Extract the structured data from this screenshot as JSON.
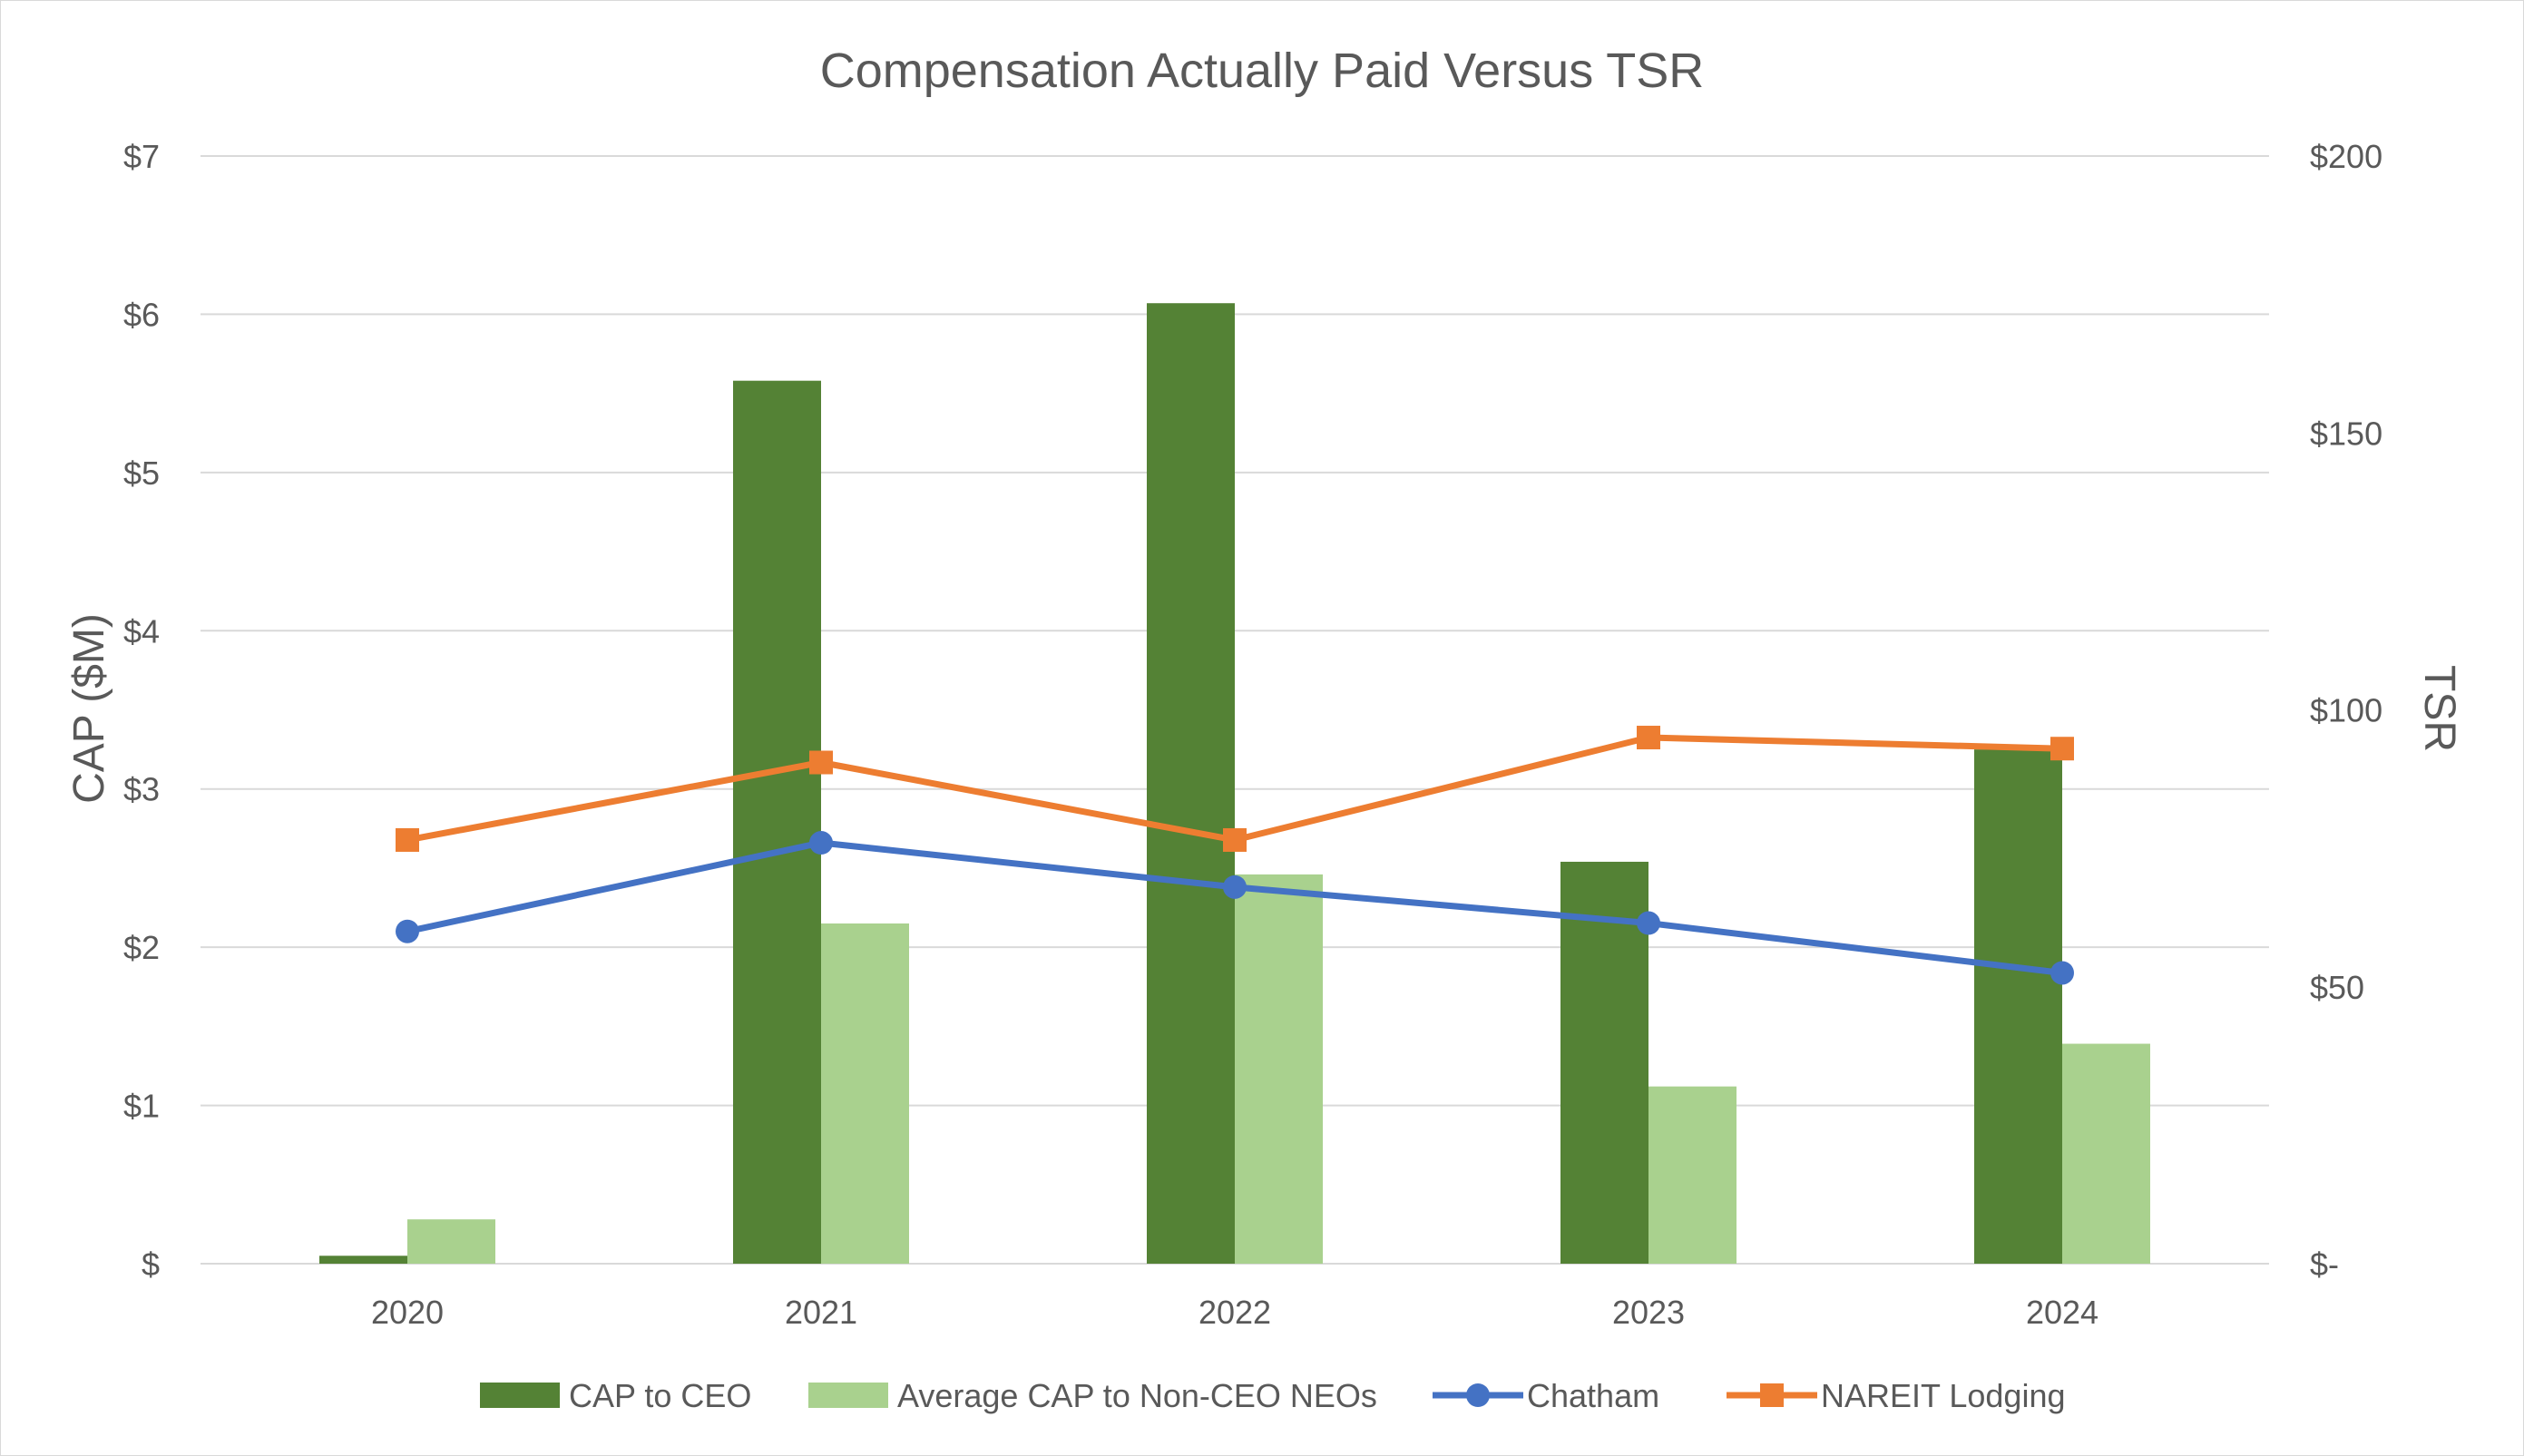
{
  "chart_data": {
    "type": "bar",
    "title": "Compensation Actually Paid Versus TSR",
    "categories": [
      "2020",
      "2021",
      "2022",
      "2023",
      "2024"
    ],
    "y_left": {
      "label": "CAP ($M)",
      "range": [
        0,
        7
      ],
      "ticks": [
        0,
        1,
        2,
        3,
        4,
        5,
        6,
        7
      ],
      "tick_labels": [
        "$",
        "$1",
        "$2",
        "$3",
        "$4",
        "$5",
        "$6",
        "$7"
      ]
    },
    "y_right": {
      "label": "TSR",
      "range": [
        0,
        200
      ],
      "ticks": [
        0,
        50,
        100,
        150,
        200
      ],
      "tick_labels": [
        "$-",
        "$50",
        "$100",
        "$150",
        "$200"
      ]
    },
    "series": [
      {
        "name": "CAP to CEO",
        "type": "bar",
        "axis": "left",
        "color": "#548235",
        "values": [
          0.05,
          5.58,
          6.07,
          2.54,
          3.25
        ]
      },
      {
        "name": "Average CAP to Non-CEO NEOs",
        "type": "bar",
        "axis": "left",
        "color": "#a9d18e",
        "values": [
          0.28,
          2.15,
          2.46,
          1.12,
          1.39
        ]
      },
      {
        "name": "Chatham",
        "type": "line",
        "marker": "circle",
        "axis": "right",
        "color": "#4472c4",
        "values": [
          60,
          76,
          68,
          61.5,
          52.5
        ]
      },
      {
        "name": "NAREIT Lodging",
        "type": "line",
        "marker": "square",
        "axis": "right",
        "color": "#ed7d31",
        "values": [
          76.5,
          90.5,
          76.5,
          95,
          93
        ]
      }
    ],
    "grid": true,
    "legend_position": "bottom"
  }
}
